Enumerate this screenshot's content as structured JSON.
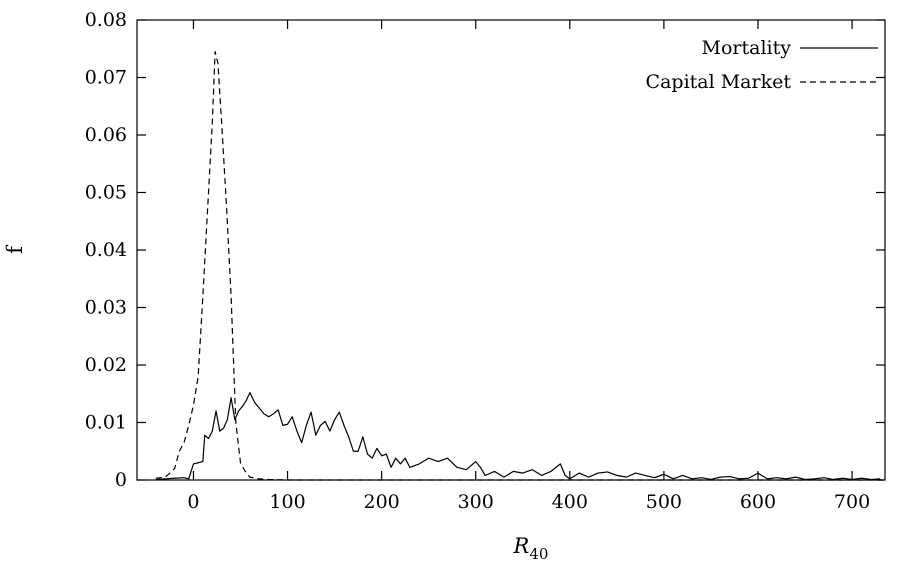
{
  "chart_data": {
    "type": "line",
    "xlabel": "R",
    "xlabel_sub": "40",
    "ylabel": "f",
    "xlim": [
      -60,
      735
    ],
    "ylim": [
      0,
      0.08
    ],
    "x_ticks": [
      0,
      100,
      200,
      300,
      400,
      500,
      600,
      700
    ],
    "x_tick_labels": [
      "0",
      "100",
      "200",
      "300",
      "400",
      "500",
      "600",
      "700"
    ],
    "y_ticks": [
      0,
      0.01,
      0.02,
      0.03,
      0.04,
      0.05,
      0.06,
      0.07,
      0.08
    ],
    "y_tick_labels": [
      "0",
      "0.01",
      "0.02",
      "0.03",
      "0.04",
      "0.05",
      "0.06",
      "0.07",
      "0.08"
    ],
    "grid": false,
    "legend_position": "top-right",
    "series": [
      {
        "name": "Mortality",
        "style": "solid",
        "color": "#000000",
        "points": [
          [
            -40,
            0.0001
          ],
          [
            -30,
            0.0002
          ],
          [
            -20,
            0.0003
          ],
          [
            -10,
            0.0004
          ],
          [
            -5,
            0.0002
          ],
          [
            0,
            0.0028
          ],
          [
            5,
            0.003
          ],
          [
            10,
            0.0032
          ],
          [
            12,
            0.0078
          ],
          [
            16,
            0.0072
          ],
          [
            20,
            0.0085
          ],
          [
            24,
            0.012
          ],
          [
            28,
            0.0085
          ],
          [
            32,
            0.009
          ],
          [
            36,
            0.0105
          ],
          [
            40,
            0.0143
          ],
          [
            44,
            0.0105
          ],
          [
            48,
            0.012
          ],
          [
            52,
            0.0128
          ],
          [
            56,
            0.0138
          ],
          [
            60,
            0.0152
          ],
          [
            65,
            0.0135
          ],
          [
            70,
            0.0125
          ],
          [
            75,
            0.0115
          ],
          [
            80,
            0.011
          ],
          [
            85,
            0.0115
          ],
          [
            90,
            0.0122
          ],
          [
            95,
            0.0095
          ],
          [
            100,
            0.0097
          ],
          [
            105,
            0.011
          ],
          [
            110,
            0.0085
          ],
          [
            115,
            0.0065
          ],
          [
            120,
            0.0095
          ],
          [
            125,
            0.0118
          ],
          [
            130,
            0.0078
          ],
          [
            135,
            0.0095
          ],
          [
            140,
            0.0102
          ],
          [
            145,
            0.0085
          ],
          [
            150,
            0.0105
          ],
          [
            155,
            0.0118
          ],
          [
            160,
            0.0095
          ],
          [
            165,
            0.0075
          ],
          [
            170,
            0.005
          ],
          [
            175,
            0.005
          ],
          [
            180,
            0.0075
          ],
          [
            185,
            0.0045
          ],
          [
            190,
            0.0038
          ],
          [
            195,
            0.0055
          ],
          [
            200,
            0.0042
          ],
          [
            205,
            0.0045
          ],
          [
            210,
            0.0022
          ],
          [
            215,
            0.0038
          ],
          [
            220,
            0.0028
          ],
          [
            225,
            0.0038
          ],
          [
            230,
            0.0022
          ],
          [
            240,
            0.0028
          ],
          [
            250,
            0.0038
          ],
          [
            260,
            0.0032
          ],
          [
            270,
            0.0038
          ],
          [
            280,
            0.0022
          ],
          [
            290,
            0.0018
          ],
          [
            300,
            0.0032
          ],
          [
            305,
            0.0022
          ],
          [
            310,
            0.0008
          ],
          [
            320,
            0.0015
          ],
          [
            330,
            0.0005
          ],
          [
            340,
            0.0015
          ],
          [
            350,
            0.0012
          ],
          [
            360,
            0.0018
          ],
          [
            370,
            0.0008
          ],
          [
            380,
            0.0015
          ],
          [
            390,
            0.0028
          ],
          [
            395,
            0.0008
          ],
          [
            400,
            0.0002
          ],
          [
            410,
            0.0012
          ],
          [
            420,
            0.0005
          ],
          [
            430,
            0.0012
          ],
          [
            440,
            0.0014
          ],
          [
            450,
            0.0008
          ],
          [
            460,
            0.0005
          ],
          [
            470,
            0.0012
          ],
          [
            480,
            0.0008
          ],
          [
            490,
            0.0004
          ],
          [
            500,
            0.001
          ],
          [
            510,
            0.0002
          ],
          [
            520,
            0.0008
          ],
          [
            530,
            0.0002
          ],
          [
            540,
            0.0004
          ],
          [
            550,
            0.0001
          ],
          [
            560,
            0.0005
          ],
          [
            570,
            0.0006
          ],
          [
            580,
            0.0002
          ],
          [
            590,
            0.0003
          ],
          [
            600,
            0.0012
          ],
          [
            610,
            0.0002
          ],
          [
            620,
            0.0004
          ],
          [
            630,
            0.0002
          ],
          [
            640,
            0.0005
          ],
          [
            650,
            0.0001
          ],
          [
            660,
            0.0002
          ],
          [
            670,
            0.0004
          ],
          [
            680,
            0.0001
          ],
          [
            690,
            0.0003
          ],
          [
            700,
            0.0001
          ],
          [
            710,
            0.0003
          ],
          [
            720,
            0.0001
          ],
          [
            730,
            0.0002
          ]
        ]
      },
      {
        "name": "Capital Market",
        "style": "dashed",
        "color": "#000000",
        "points": [
          [
            -40,
            0.0003
          ],
          [
            -30,
            0.0005
          ],
          [
            -25,
            0.0012
          ],
          [
            -20,
            0.002
          ],
          [
            -15,
            0.005
          ],
          [
            -10,
            0.0065
          ],
          [
            -5,
            0.0095
          ],
          [
            0,
            0.013
          ],
          [
            5,
            0.018
          ],
          [
            10,
            0.032
          ],
          [
            15,
            0.047
          ],
          [
            20,
            0.062
          ],
          [
            23,
            0.0745
          ],
          [
            26,
            0.0725
          ],
          [
            30,
            0.062
          ],
          [
            35,
            0.048
          ],
          [
            40,
            0.032
          ],
          [
            45,
            0.01
          ],
          [
            50,
            0.003
          ],
          [
            55,
            0.0015
          ],
          [
            60,
            0.0005
          ],
          [
            70,
            0.0002
          ],
          [
            80,
            0.0001
          ],
          [
            100,
            0.0
          ],
          [
            150,
            0.0
          ],
          [
            300,
            0.0
          ],
          [
            500,
            0.0
          ],
          [
            735,
            0.0
          ]
        ]
      }
    ]
  }
}
